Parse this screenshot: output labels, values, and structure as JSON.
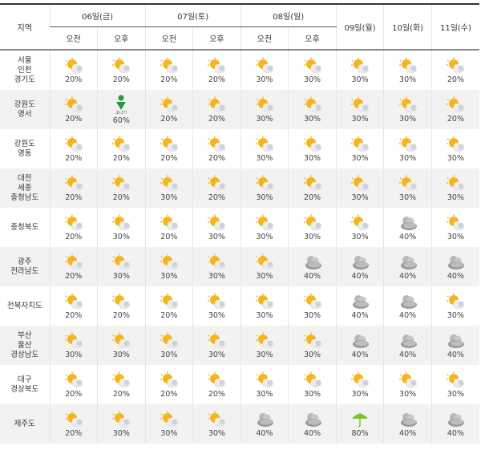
{
  "header": {
    "region_label": "지역",
    "days": [
      {
        "label": "06일(금)",
        "split": true
      },
      {
        "label": "07일(토)",
        "split": true
      },
      {
        "label": "08일(일)",
        "split": true
      },
      {
        "label": "09일(월)",
        "split": false
      },
      {
        "label": "10일(화)",
        "split": false
      },
      {
        "label": "11일(수)",
        "split": false
      }
    ],
    "am_label": "오전",
    "pm_label": "오후"
  },
  "colors": {
    "sun": "#f5b51c",
    "cloud": "#cfd3d6",
    "dark_cloud": "#9a9a9a",
    "shower": "#1e9e3a",
    "rain": "#7cc22a"
  },
  "rows": [
    {
      "region": "서울\n인천\n경기도",
      "cells": [
        [
          "partly-cloudy",
          "20%"
        ],
        [
          "partly-cloudy",
          "20%"
        ],
        [
          "partly-cloudy",
          "20%"
        ],
        [
          "partly-cloudy",
          "20%"
        ],
        [
          "partly-cloudy",
          "30%"
        ],
        [
          "partly-cloudy",
          "30%"
        ],
        [
          "partly-cloudy",
          "30%"
        ],
        [
          "partly-cloudy",
          "30%"
        ],
        [
          "partly-cloudy",
          "20%"
        ]
      ]
    },
    {
      "region": "강원도\n영서",
      "cells": [
        [
          "partly-cloudy",
          "20%"
        ],
        [
          "shower",
          "60%",
          "소나기"
        ],
        [
          "partly-cloudy",
          "20%"
        ],
        [
          "partly-cloudy",
          "20%"
        ],
        [
          "partly-cloudy",
          "30%"
        ],
        [
          "partly-cloudy",
          "30%"
        ],
        [
          "partly-cloudy",
          "30%"
        ],
        [
          "partly-cloudy",
          "30%"
        ],
        [
          "partly-cloudy",
          "20%"
        ]
      ]
    },
    {
      "region": "강원도\n영동",
      "cells": [
        [
          "partly-cloudy",
          "20%"
        ],
        [
          "partly-cloudy",
          "20%"
        ],
        [
          "partly-cloudy",
          "20%"
        ],
        [
          "partly-cloudy",
          "20%"
        ],
        [
          "partly-cloudy",
          "30%"
        ],
        [
          "partly-cloudy",
          "30%"
        ],
        [
          "partly-cloudy",
          "30%"
        ],
        [
          "partly-cloudy",
          "30%"
        ],
        [
          "partly-cloudy",
          "30%"
        ]
      ]
    },
    {
      "region": "대전\n세종\n충청남도",
      "cells": [
        [
          "partly-cloudy",
          "20%"
        ],
        [
          "partly-cloudy",
          "20%"
        ],
        [
          "partly-cloudy",
          "30%"
        ],
        [
          "partly-cloudy",
          "20%"
        ],
        [
          "partly-cloudy",
          "30%"
        ],
        [
          "partly-cloudy",
          "20%"
        ],
        [
          "partly-cloudy",
          "30%"
        ],
        [
          "partly-cloudy",
          "30%"
        ],
        [
          "partly-cloudy",
          "30%"
        ]
      ]
    },
    {
      "region": "충청북도",
      "cells": [
        [
          "partly-cloudy",
          "20%"
        ],
        [
          "partly-cloudy",
          "30%"
        ],
        [
          "partly-cloudy",
          "20%"
        ],
        [
          "partly-cloudy",
          "30%"
        ],
        [
          "partly-cloudy",
          "30%"
        ],
        [
          "partly-cloudy",
          "30%"
        ],
        [
          "partly-cloudy",
          "30%"
        ],
        [
          "cloudy",
          "40%"
        ],
        [
          "partly-cloudy",
          "30%"
        ]
      ]
    },
    {
      "region": "광주\n전라남도",
      "cells": [
        [
          "partly-cloudy",
          "20%"
        ],
        [
          "partly-cloudy",
          "30%"
        ],
        [
          "partly-cloudy",
          "30%"
        ],
        [
          "partly-cloudy",
          "30%"
        ],
        [
          "partly-cloudy",
          "30%"
        ],
        [
          "cloudy",
          "40%"
        ],
        [
          "cloudy",
          "40%"
        ],
        [
          "cloudy",
          "40%"
        ],
        [
          "cloudy",
          "40%"
        ]
      ]
    },
    {
      "region": "전북자치도",
      "cells": [
        [
          "partly-cloudy",
          "20%"
        ],
        [
          "partly-cloudy",
          "20%"
        ],
        [
          "partly-cloudy",
          "20%"
        ],
        [
          "partly-cloudy",
          "30%"
        ],
        [
          "partly-cloudy",
          "30%"
        ],
        [
          "partly-cloudy",
          "30%"
        ],
        [
          "cloudy",
          "40%"
        ],
        [
          "cloudy",
          "40%"
        ],
        [
          "partly-cloudy",
          "30%"
        ]
      ]
    },
    {
      "region": "부산\n울산\n경상남도",
      "cells": [
        [
          "partly-cloudy",
          "30%"
        ],
        [
          "partly-cloudy",
          "30%"
        ],
        [
          "partly-cloudy",
          "30%"
        ],
        [
          "partly-cloudy",
          "30%"
        ],
        [
          "partly-cloudy",
          "30%"
        ],
        [
          "partly-cloudy",
          "30%"
        ],
        [
          "cloudy",
          "40%"
        ],
        [
          "cloudy",
          "40%"
        ],
        [
          "cloudy",
          "40%"
        ]
      ]
    },
    {
      "region": "대구\n경상북도",
      "cells": [
        [
          "partly-cloudy",
          "20%"
        ],
        [
          "partly-cloudy",
          "20%"
        ],
        [
          "partly-cloudy",
          "20%"
        ],
        [
          "partly-cloudy",
          "20%"
        ],
        [
          "partly-cloudy",
          "30%"
        ],
        [
          "partly-cloudy",
          "30%"
        ],
        [
          "partly-cloudy",
          "30%"
        ],
        [
          "partly-cloudy",
          "30%"
        ],
        [
          "partly-cloudy",
          "30%"
        ]
      ]
    },
    {
      "region": "제주도",
      "cells": [
        [
          "partly-cloudy",
          "20%"
        ],
        [
          "partly-cloudy",
          "30%"
        ],
        [
          "partly-cloudy",
          "30%"
        ],
        [
          "partly-cloudy",
          "30%"
        ],
        [
          "cloudy",
          "40%"
        ],
        [
          "cloudy",
          "40%"
        ],
        [
          "rain",
          "80%"
        ],
        [
          "cloudy",
          "40%"
        ],
        [
          "cloudy",
          "40%"
        ]
      ]
    }
  ]
}
